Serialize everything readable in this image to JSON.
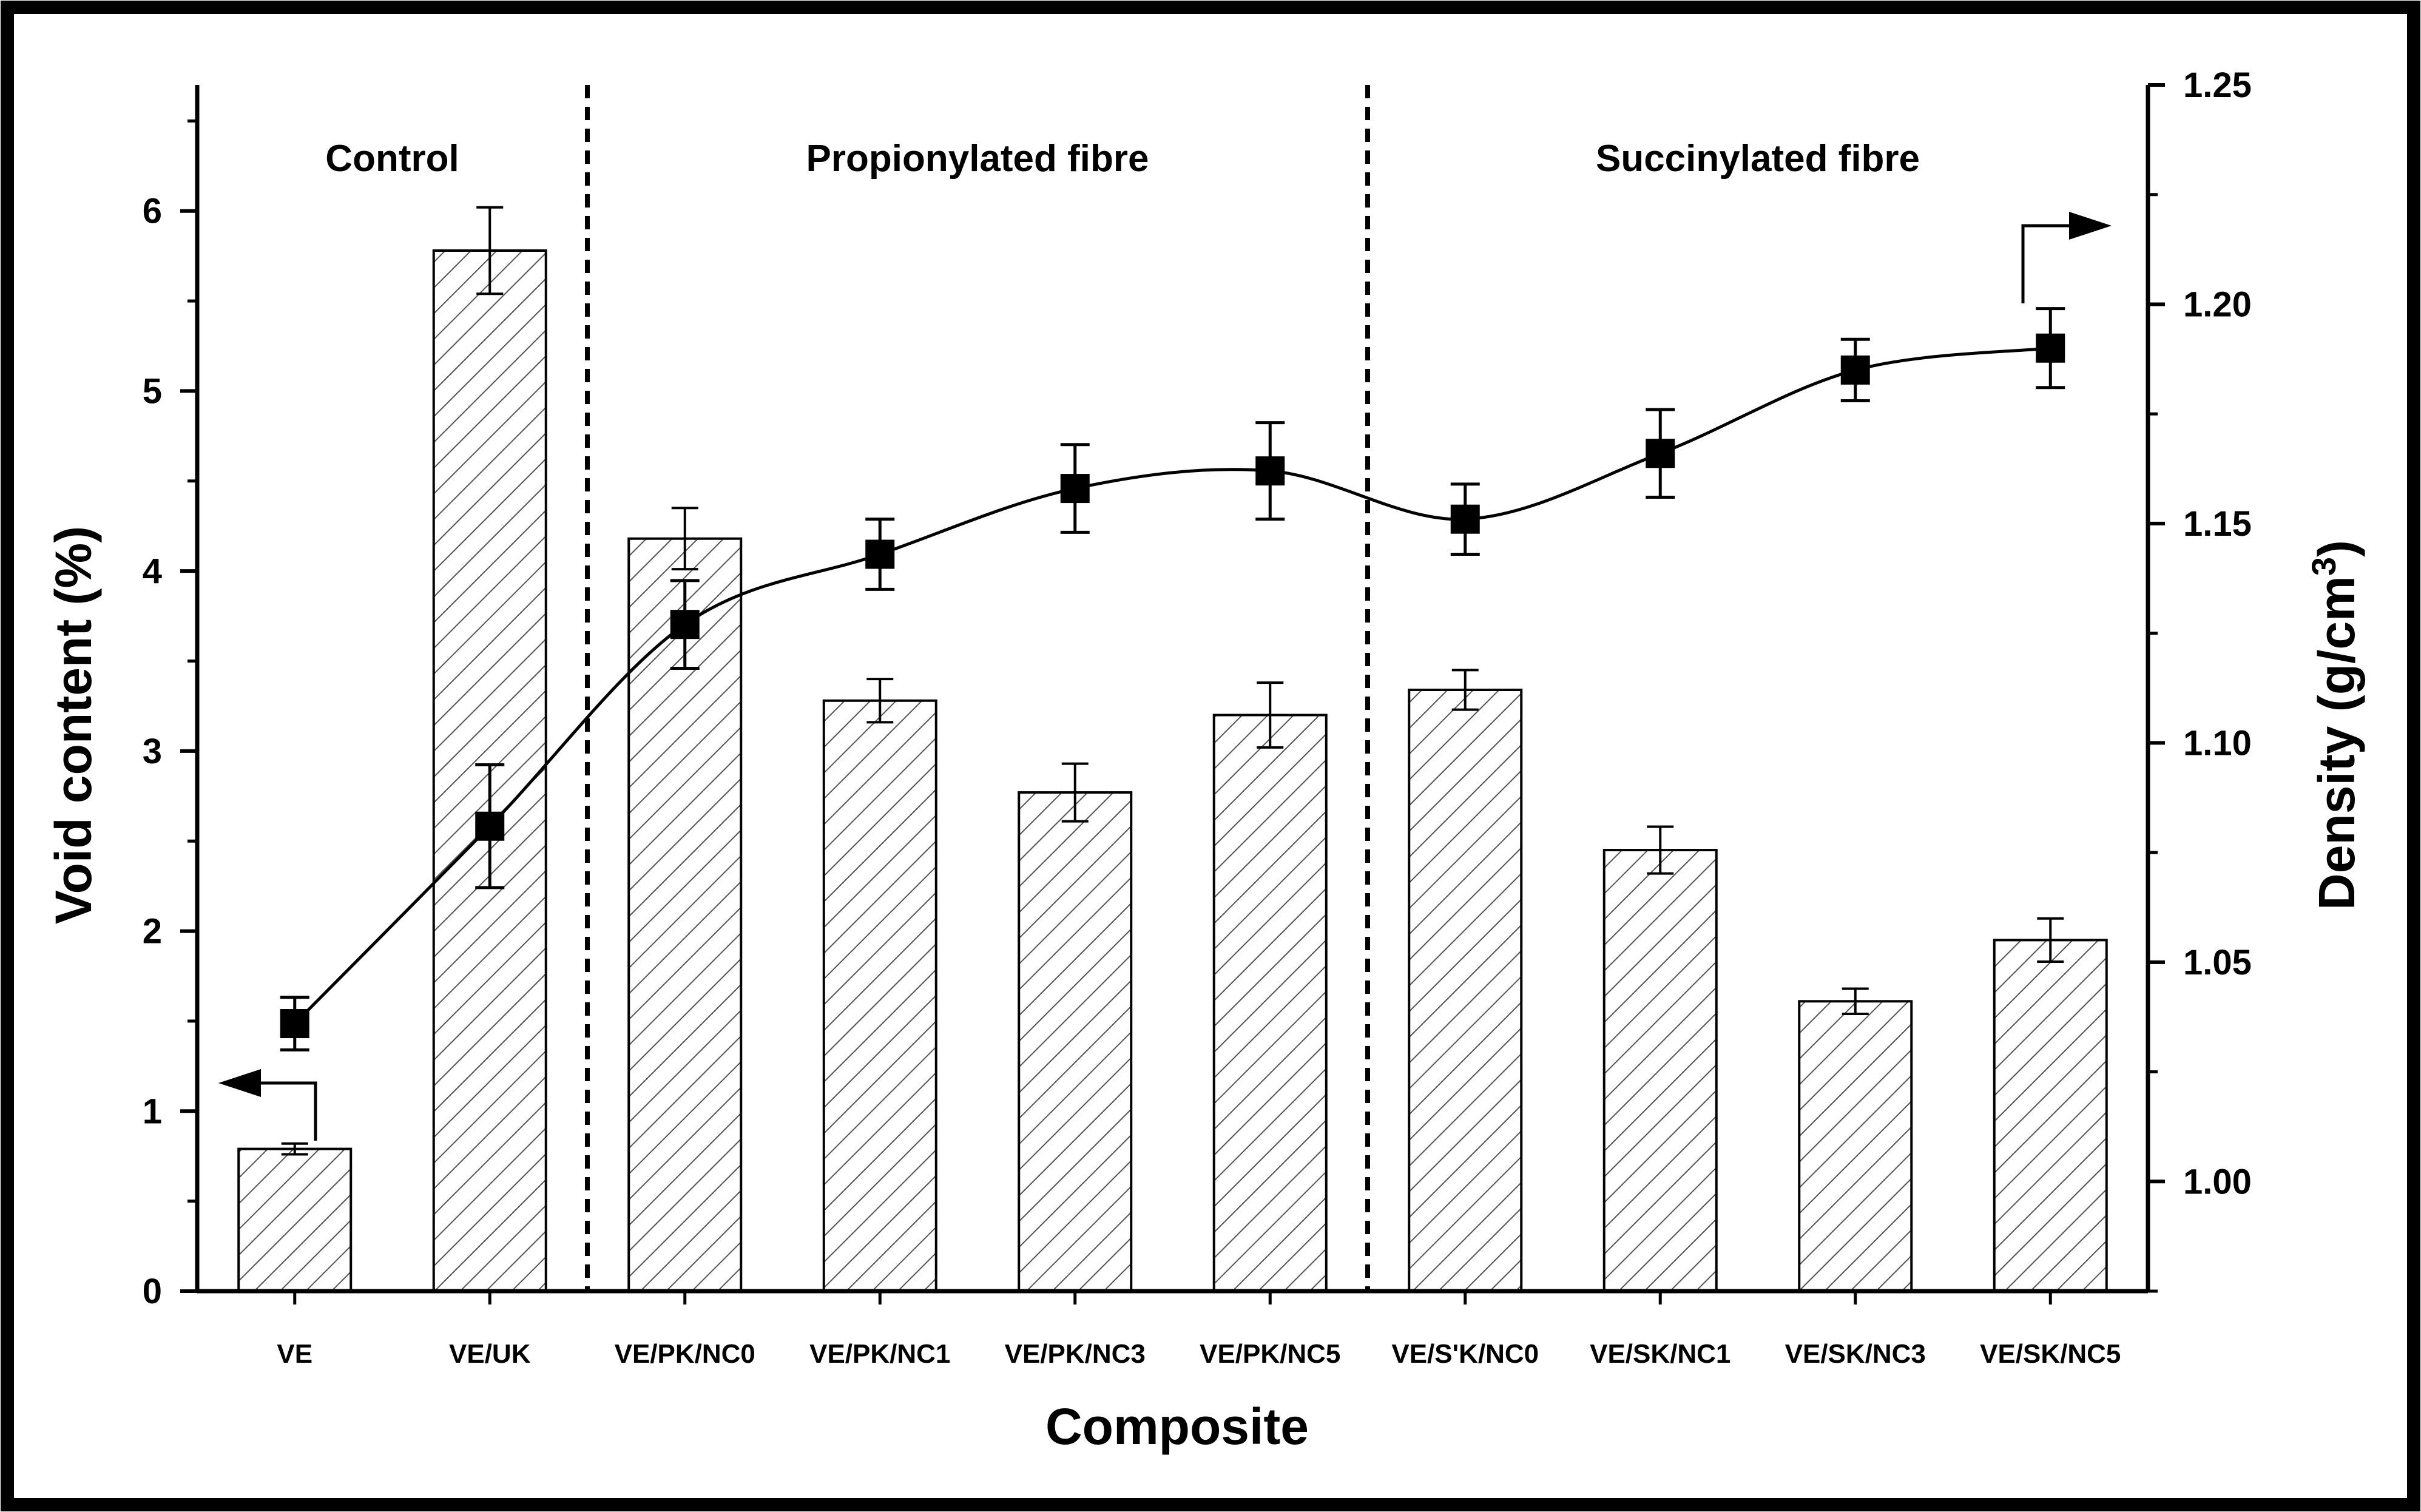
{
  "chart_data": {
    "type": "bar",
    "xlabel": "Composite",
    "ylabel": "Void content (%)",
    "y2label": "Density (g/cm",
    "y2label_superscript": "3",
    "y2label_close": ")",
    "categories": [
      "VE",
      "VE/UK",
      "VE/PK/NC0",
      "VE/PK/NC1",
      "VE/PK/NC3",
      "VE/PK/NC5",
      "VE/S'K/NC0",
      "VE/SK/NC1",
      "VE/SK/NC3",
      "VE/SK/NC5"
    ],
    "groups": [
      {
        "label": "Control"
      },
      {
        "label": "Propionylated fibre"
      },
      {
        "label": "Succinylated fibre"
      }
    ],
    "ylim": [
      0,
      6.7
    ],
    "yticks": [
      "0",
      "1",
      "2",
      "3",
      "4",
      "5",
      "6"
    ],
    "y2lim": [
      0.975,
      1.25
    ],
    "y2ticks": [
      "1.00",
      "1.05",
      "1.10",
      "1.15",
      "1.20",
      "1.25"
    ],
    "series": [
      {
        "kind": "bar",
        "axis": "left",
        "fill": "hatched",
        "values": [
          0.79,
          5.78,
          4.18,
          3.28,
          2.77,
          3.2,
          3.34,
          2.45,
          1.61,
          1.95
        ],
        "errors": [
          0.03,
          0.24,
          0.17,
          0.12,
          0.16,
          0.18,
          0.11,
          0.13,
          0.07,
          0.12
        ]
      },
      {
        "kind": "line",
        "axis": "right",
        "marker": "square",
        "values": [
          1.036,
          1.081,
          1.127,
          1.143,
          1.158,
          1.162,
          1.151,
          1.166,
          1.185,
          1.19
        ],
        "errors": [
          0.006,
          0.014,
          0.01,
          0.008,
          0.01,
          0.011,
          0.008,
          0.01,
          0.007,
          0.009
        ]
      }
    ],
    "colors": {
      "bar_stroke": "#000000",
      "hatch": "#555555",
      "line": "#000000",
      "marker": "#000000"
    }
  }
}
